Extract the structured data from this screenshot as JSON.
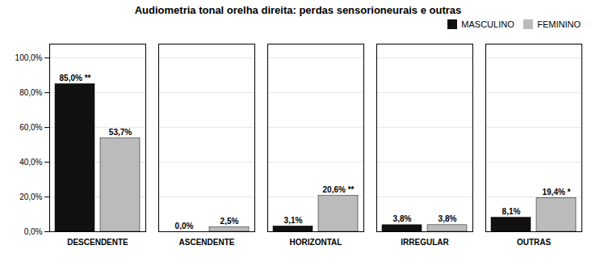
{
  "chart_data": {
    "type": "bar",
    "title": "Audiometria tonal orelha direita: perdas sensorioneurais e outras",
    "categories": [
      "DESCENDENTE",
      "ASCENDENTE",
      "HORIZONTAL",
      "IRREGULAR",
      "OUTRAS"
    ],
    "series": [
      {
        "name": "MASCULINO",
        "color": "#111111",
        "values": [
          85.0,
          0.0,
          3.1,
          3.8,
          8.1
        ],
        "value_labels": [
          "85,0% **",
          "0,0%",
          "3,1%",
          "3,8%",
          "8,1%"
        ]
      },
      {
        "name": "FEMININO",
        "color": "#bbbbbb",
        "values": [
          53.7,
          2.5,
          20.6,
          3.8,
          19.4
        ],
        "value_labels": [
          "53,7%",
          "2,5%",
          "20,6% **",
          "3,8%",
          "19,4% *"
        ]
      }
    ],
    "ylim": [
      0,
      108
    ],
    "yticks": [
      {
        "value": 0,
        "label": "0,0%"
      },
      {
        "value": 20,
        "label": "20,0%"
      },
      {
        "value": 40,
        "label": "40,0%"
      },
      {
        "value": 60,
        "label": "60,0%"
      },
      {
        "value": 80,
        "label": "80,0%"
      },
      {
        "value": 100,
        "label": "100,0%"
      }
    ],
    "grid": true,
    "legend": "upper right",
    "data_labels": true
  }
}
